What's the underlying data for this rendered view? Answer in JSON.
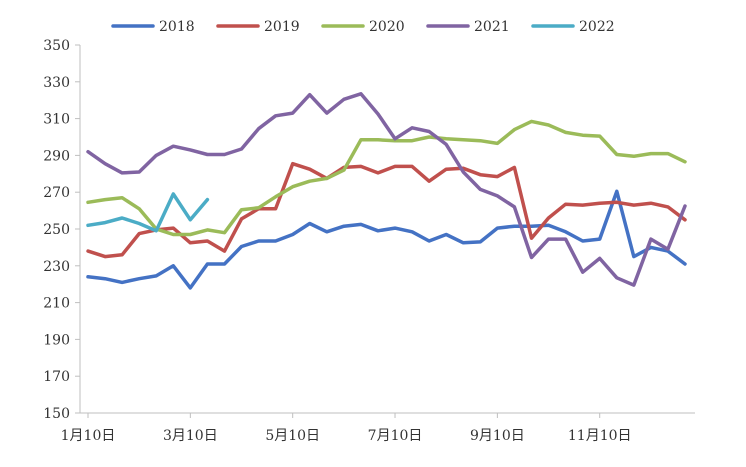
{
  "chart_data": {
    "type": "line",
    "ylim": [
      150,
      350
    ],
    "yticks": [
      "150",
      "170",
      "190",
      "210",
      "230",
      "250",
      "270",
      "290",
      "310",
      "330",
      "350"
    ],
    "xtick_labels": [
      "1月10日",
      "3月10日",
      "5月10日",
      "7月10日",
      "9月10日",
      "11月10日"
    ],
    "xtick_positions": [
      0,
      6,
      12,
      18,
      24,
      30
    ],
    "grid": false,
    "legend_position": "top",
    "series": [
      {
        "name": "2018",
        "color": "#4472C4",
        "values": [
          224,
          223,
          221,
          223,
          224.5,
          230,
          218,
          231,
          231,
          240.5,
          243.5,
          243.5,
          247,
          253,
          248.5,
          251.5,
          252.5,
          249,
          250.5,
          248.5,
          243.5,
          247,
          242.5,
          243,
          250.5,
          251.5,
          251.5,
          252,
          248.5,
          243.5,
          244.5,
          270.5,
          235,
          240,
          238,
          231
        ]
      },
      {
        "name": "2019",
        "color": "#C0504D",
        "values": [
          238,
          235,
          236,
          247.5,
          249.5,
          250.5,
          242.5,
          243.5,
          238,
          255.5,
          261,
          261,
          285.5,
          282.5,
          277.5,
          283.5,
          284,
          280.5,
          284,
          284,
          276,
          282.5,
          283,
          279.5,
          278.5,
          283.5,
          245,
          256,
          263.5,
          263,
          264,
          264.5,
          263,
          264,
          262,
          255
        ]
      },
      {
        "name": "2020",
        "color": "#9BBB59",
        "values": [
          264.5,
          266,
          267,
          261,
          250,
          247,
          247,
          249.5,
          248,
          260.5,
          261.5,
          267.5,
          273,
          276,
          277.5,
          282,
          298.5,
          298.5,
          298,
          298,
          300,
          299,
          298.5,
          298,
          296.5,
          304,
          308.5,
          306.5,
          302.5,
          301,
          300.5,
          290.5,
          289.5,
          291,
          291,
          286.5
        ]
      },
      {
        "name": "2021",
        "color": "#8064A2",
        "values": [
          292,
          285.5,
          280.5,
          281,
          290,
          295,
          293,
          290.5,
          290.5,
          293.5,
          304.5,
          311.5,
          313,
          323,
          313,
          320.5,
          323.5,
          312.5,
          299,
          305,
          303,
          296,
          281,
          271.5,
          268,
          262,
          234.5,
          244.5,
          244.5,
          226.5,
          234,
          223.5,
          219.5,
          244.5,
          239,
          262.5
        ]
      },
      {
        "name": "2022",
        "color": "#4BACC6",
        "values": [
          252,
          253.5,
          256,
          253,
          249,
          269,
          255,
          266
        ]
      }
    ]
  }
}
